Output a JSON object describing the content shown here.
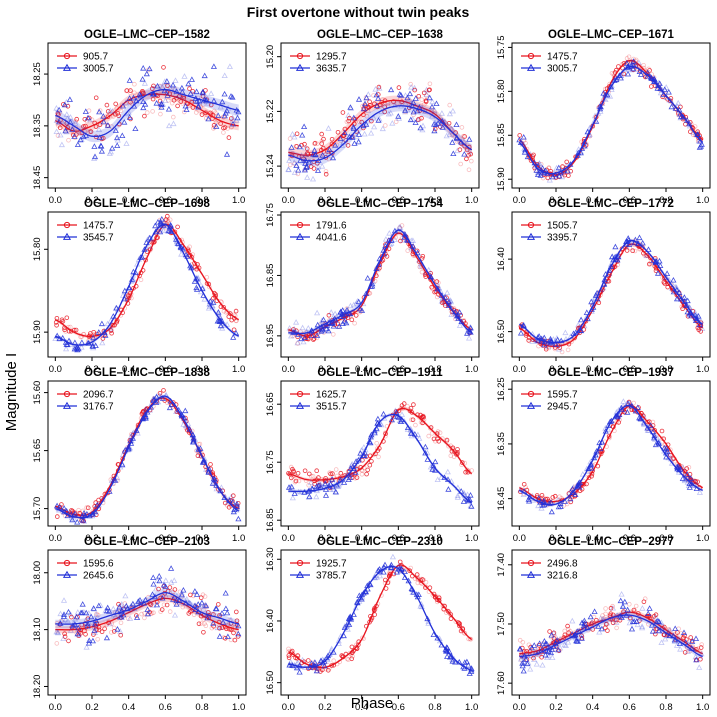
{
  "figure": {
    "title": "First overtone without twin peaks",
    "xlabel": "Phase",
    "ylabel": "Magnitude I",
    "colors": {
      "red": "#e8141e",
      "blue": "#2230d8"
    },
    "legend_placement": "top-left",
    "xticks": [
      "0.0",
      "0.2",
      "0.4",
      "0.6",
      "0.8",
      "1.0"
    ]
  },
  "chart_data": [
    {
      "type": "scatter",
      "title": "OGLE–LMC–CEP–1582",
      "xlim": [
        0,
        1
      ],
      "ylim": [
        18.47,
        18.19
      ],
      "yticks": [
        {
          "v": 18.25,
          "t": "18.25"
        },
        {
          "v": 18.35,
          "t": "18.35"
        },
        {
          "v": 18.45,
          "t": "18.45"
        }
      ],
      "series": [
        {
          "name": "905.7",
          "color": "red",
          "marker": "circle",
          "scatter": 0.035,
          "x": [
            0,
            0.1,
            0.2,
            0.3,
            0.4,
            0.5,
            0.6,
            0.7,
            0.8,
            0.9,
            1.0
          ],
          "y": [
            18.34,
            18.36,
            18.35,
            18.33,
            18.3,
            18.29,
            18.29,
            18.3,
            18.32,
            18.34,
            18.35
          ]
        },
        {
          "name": "3005.7",
          "color": "blue",
          "marker": "triangle",
          "scatter": 0.045,
          "x": [
            0,
            0.1,
            0.2,
            0.3,
            0.4,
            0.5,
            0.6,
            0.7,
            0.8,
            0.9,
            1.0
          ],
          "y": [
            18.33,
            18.35,
            18.37,
            18.36,
            18.32,
            18.29,
            18.28,
            18.29,
            18.3,
            18.31,
            18.32
          ]
        }
      ]
    },
    {
      "type": "scatter",
      "title": "OGLE–LMC–CEP–1638",
      "xlim": [
        0,
        1
      ],
      "ylim": [
        15.248,
        15.195
      ],
      "yticks": [
        {
          "v": 15.2,
          "t": "15.20"
        },
        {
          "v": 15.22,
          "t": "15.22"
        },
        {
          "v": 15.24,
          "t": "15.24"
        }
      ],
      "series": [
        {
          "name": "1295.7",
          "color": "red",
          "marker": "circle",
          "scatter": 0.007,
          "x": [
            0,
            0.1,
            0.2,
            0.3,
            0.4,
            0.5,
            0.6,
            0.7,
            0.8,
            0.9,
            1.0
          ],
          "y": [
            15.235,
            15.236,
            15.234,
            15.228,
            15.221,
            15.217,
            15.216,
            15.218,
            15.221,
            15.228,
            15.234
          ]
        },
        {
          "name": "3635.7",
          "color": "blue",
          "marker": "triangle",
          "scatter": 0.008,
          "x": [
            0,
            0.1,
            0.2,
            0.3,
            0.4,
            0.5,
            0.6,
            0.7,
            0.8,
            0.9,
            1.0
          ],
          "y": [
            15.236,
            15.238,
            15.237,
            15.232,
            15.225,
            15.22,
            15.218,
            15.219,
            15.222,
            15.228,
            15.234
          ]
        }
      ]
    },
    {
      "type": "scatter",
      "title": "OGLE–LMC–CEP–1671",
      "xlim": [
        0,
        1
      ],
      "ylim": [
        15.91,
        15.745
      ],
      "yticks": [
        {
          "v": 15.75,
          "t": "15.75"
        },
        {
          "v": 15.8,
          "t": "15.80"
        },
        {
          "v": 15.85,
          "t": "15.85"
        },
        {
          "v": 15.9,
          "t": "15.90"
        }
      ],
      "series": [
        {
          "name": "1475.7",
          "color": "red",
          "marker": "circle",
          "scatter": 0.007,
          "x": [
            0,
            0.1,
            0.2,
            0.3,
            0.4,
            0.5,
            0.6,
            0.7,
            0.8,
            0.9,
            1.0
          ],
          "y": [
            15.855,
            15.885,
            15.895,
            15.88,
            15.84,
            15.79,
            15.765,
            15.78,
            15.805,
            15.83,
            15.855
          ]
        },
        {
          "name": "3005.7",
          "color": "blue",
          "marker": "triangle",
          "scatter": 0.007,
          "x": [
            0,
            0.1,
            0.2,
            0.3,
            0.4,
            0.5,
            0.6,
            0.7,
            0.8,
            0.9,
            1.0
          ],
          "y": [
            15.858,
            15.888,
            15.893,
            15.878,
            15.838,
            15.795,
            15.772,
            15.782,
            15.805,
            15.83,
            15.858
          ]
        }
      ]
    },
    {
      "type": "scatter",
      "title": "OGLE–LMC–CEP–1698",
      "xlim": [
        0,
        1
      ],
      "ylim": [
        15.93,
        15.755
      ],
      "yticks": [
        {
          "v": 15.8,
          "t": "15.80"
        },
        {
          "v": 15.9,
          "t": "15.90"
        }
      ],
      "series": [
        {
          "name": "1475.7",
          "color": "red",
          "marker": "circle",
          "scatter": 0.008,
          "x": [
            0,
            0.1,
            0.2,
            0.3,
            0.4,
            0.5,
            0.6,
            0.7,
            0.8,
            0.9,
            1.0
          ],
          "y": [
            15.885,
            15.9,
            15.905,
            15.895,
            15.86,
            15.81,
            15.77,
            15.795,
            15.83,
            15.865,
            15.885
          ]
        },
        {
          "name": "3545.7",
          "color": "blue",
          "marker": "triangle",
          "scatter": 0.008,
          "x": [
            0,
            0.1,
            0.2,
            0.3,
            0.4,
            0.5,
            0.6,
            0.7,
            0.8,
            0.9,
            1.0
          ],
          "y": [
            15.905,
            15.915,
            15.912,
            15.89,
            15.845,
            15.795,
            15.77,
            15.805,
            15.85,
            15.885,
            15.905
          ]
        }
      ]
    },
    {
      "type": "scatter",
      "title": "OGLE–LMC–CEP–1754",
      "xlim": [
        0,
        1
      ],
      "ylim": [
        16.985,
        16.745
      ],
      "yticks": [
        {
          "v": 16.75,
          "t": "16.75"
        },
        {
          "v": 16.85,
          "t": "16.85"
        },
        {
          "v": 16.95,
          "t": "16.95"
        }
      ],
      "series": [
        {
          "name": "1791.6",
          "color": "red",
          "marker": "circle",
          "scatter": 0.013,
          "x": [
            0,
            0.1,
            0.2,
            0.3,
            0.4,
            0.5,
            0.6,
            0.7,
            0.8,
            0.9,
            1.0
          ],
          "y": [
            16.94,
            16.95,
            16.935,
            16.92,
            16.9,
            16.83,
            16.78,
            16.82,
            16.87,
            16.91,
            16.94
          ]
        },
        {
          "name": "4041.6",
          "color": "blue",
          "marker": "triangle",
          "scatter": 0.013,
          "x": [
            0,
            0.1,
            0.2,
            0.3,
            0.4,
            0.5,
            0.6,
            0.7,
            0.8,
            0.9,
            1.0
          ],
          "y": [
            16.945,
            16.945,
            16.93,
            16.915,
            16.895,
            16.825,
            16.775,
            16.815,
            16.865,
            16.91,
            16.945
          ]
        }
      ]
    },
    {
      "type": "scatter",
      "title": "OGLE–LMC–CEP–1772",
      "xlim": [
        0,
        1
      ],
      "ylim": [
        16.535,
        16.335
      ],
      "yticks": [
        {
          "v": 16.4,
          "t": "16.40"
        },
        {
          "v": 16.5,
          "t": "16.50"
        }
      ],
      "series": [
        {
          "name": "1505.7",
          "color": "red",
          "marker": "circle",
          "scatter": 0.008,
          "x": [
            0,
            0.1,
            0.2,
            0.3,
            0.4,
            0.5,
            0.6,
            0.7,
            0.8,
            0.9,
            1.0
          ],
          "y": [
            16.495,
            16.515,
            16.52,
            16.51,
            16.47,
            16.42,
            16.38,
            16.395,
            16.43,
            16.465,
            16.495
          ]
        },
        {
          "name": "3395.7",
          "color": "blue",
          "marker": "triangle",
          "scatter": 0.008,
          "x": [
            0,
            0.1,
            0.2,
            0.3,
            0.4,
            0.5,
            0.6,
            0.7,
            0.8,
            0.9,
            1.0
          ],
          "y": [
            16.49,
            16.51,
            16.515,
            16.505,
            16.465,
            16.41,
            16.375,
            16.39,
            16.425,
            16.46,
            16.49
          ]
        }
      ]
    },
    {
      "type": "scatter",
      "title": "OGLE–LMC–CEP–1838",
      "xlim": [
        0,
        1
      ],
      "ylim": [
        15.715,
        15.59
      ],
      "yticks": [
        {
          "v": 15.6,
          "t": "15.60"
        },
        {
          "v": 15.65,
          "t": "15.65"
        },
        {
          "v": 15.7,
          "t": "15.70"
        }
      ],
      "series": [
        {
          "name": "2096.7",
          "color": "red",
          "marker": "circle",
          "scatter": 0.005,
          "x": [
            0,
            0.1,
            0.2,
            0.3,
            0.4,
            0.5,
            0.6,
            0.7,
            0.8,
            0.9,
            1.0
          ],
          "y": [
            15.698,
            15.705,
            15.703,
            15.68,
            15.645,
            15.615,
            15.605,
            15.625,
            15.655,
            15.685,
            15.7
          ]
        },
        {
          "name": "3176.7",
          "color": "blue",
          "marker": "triangle",
          "scatter": 0.005,
          "x": [
            0,
            0.1,
            0.2,
            0.3,
            0.4,
            0.5,
            0.6,
            0.7,
            0.8,
            0.9,
            1.0
          ],
          "y": [
            15.7,
            15.707,
            15.705,
            15.682,
            15.647,
            15.617,
            15.603,
            15.623,
            15.655,
            15.685,
            15.702
          ]
        }
      ]
    },
    {
      "type": "scatter",
      "title": "OGLE–LMC–CEP–1911",
      "xlim": [
        0,
        1
      ],
      "ylim": [
        16.86,
        16.61
      ],
      "yticks": [
        {
          "v": 16.65,
          "t": "16.65"
        },
        {
          "v": 16.75,
          "t": "16.75"
        },
        {
          "v": 16.85,
          "t": "16.85"
        }
      ],
      "series": [
        {
          "name": "1625.7",
          "color": "red",
          "marker": "circle",
          "scatter": 0.012,
          "x": [
            0,
            0.1,
            0.2,
            0.3,
            0.4,
            0.5,
            0.6,
            0.7,
            0.8,
            0.9,
            1.0
          ],
          "y": [
            16.77,
            16.78,
            16.78,
            16.775,
            16.76,
            16.72,
            16.66,
            16.67,
            16.7,
            16.73,
            16.77
          ]
        },
        {
          "name": "3515.7",
          "color": "blue",
          "marker": "triangle",
          "scatter": 0.012,
          "x": [
            0,
            0.1,
            0.2,
            0.3,
            0.4,
            0.5,
            0.6,
            0.7,
            0.8,
            0.9,
            1.0
          ],
          "y": [
            16.8,
            16.8,
            16.795,
            16.78,
            16.74,
            16.68,
            16.67,
            16.71,
            16.76,
            16.79,
            16.82
          ]
        }
      ]
    },
    {
      "type": "scatter",
      "title": "OGLE–LMC–CEP–1937",
      "xlim": [
        0,
        1
      ],
      "ylim": [
        16.5,
        16.235
      ],
      "yticks": [
        {
          "v": 16.25,
          "t": "16.25"
        },
        {
          "v": 16.35,
          "t": "16.35"
        },
        {
          "v": 16.45,
          "t": "16.45"
        }
      ],
      "series": [
        {
          "name": "1595.7",
          "color": "red",
          "marker": "circle",
          "scatter": 0.01,
          "x": [
            0,
            0.1,
            0.2,
            0.3,
            0.4,
            0.5,
            0.6,
            0.7,
            0.8,
            0.9,
            1.0
          ],
          "y": [
            16.43,
            16.45,
            16.455,
            16.44,
            16.4,
            16.33,
            16.28,
            16.31,
            16.35,
            16.4,
            16.43
          ]
        },
        {
          "name": "2945.7",
          "color": "blue",
          "marker": "triangle",
          "scatter": 0.01,
          "x": [
            0,
            0.1,
            0.2,
            0.3,
            0.4,
            0.5,
            0.6,
            0.7,
            0.8,
            0.9,
            1.0
          ],
          "y": [
            16.435,
            16.455,
            16.46,
            16.435,
            16.38,
            16.31,
            16.28,
            16.32,
            16.37,
            16.41,
            16.435
          ]
        }
      ]
    },
    {
      "type": "scatter",
      "title": "OGLE–LMC–CEP–2103",
      "xlim": [
        0,
        1
      ],
      "ylim": [
        18.215,
        17.96
      ],
      "yticks": [
        {
          "v": 18.0,
          "t": "18.00"
        },
        {
          "v": 18.1,
          "t": "18.10"
        },
        {
          "v": 18.2,
          "t": "18.20"
        }
      ],
      "series": [
        {
          "name": "1595.6",
          "color": "red",
          "marker": "circle",
          "scatter": 0.025,
          "x": [
            0,
            0.1,
            0.2,
            0.3,
            0.4,
            0.5,
            0.6,
            0.7,
            0.8,
            0.9,
            1.0
          ],
          "y": [
            18.1,
            18.1,
            18.095,
            18.085,
            18.07,
            18.055,
            18.045,
            18.055,
            18.075,
            18.09,
            18.1
          ]
        },
        {
          "name": "2645.6",
          "color": "blue",
          "marker": "triangle",
          "scatter": 0.03,
          "x": [
            0,
            0.1,
            0.2,
            0.3,
            0.4,
            0.5,
            0.6,
            0.7,
            0.8,
            0.9,
            1.0
          ],
          "y": [
            18.09,
            18.09,
            18.085,
            18.075,
            18.065,
            18.05,
            18.035,
            18.05,
            18.07,
            18.08,
            18.09
          ]
        }
      ]
    },
    {
      "type": "scatter",
      "title": "OGLE–LMC–CEP–2310",
      "xlim": [
        0,
        1
      ],
      "ylim": [
        16.52,
        16.285
      ],
      "yticks": [
        {
          "v": 16.3,
          "t": "16.30"
        },
        {
          "v": 16.4,
          "t": "16.40"
        },
        {
          "v": 16.5,
          "t": "16.50"
        }
      ],
      "series": [
        {
          "name": "1925.7",
          "color": "red",
          "marker": "circle",
          "scatter": 0.008,
          "x": [
            0,
            0.1,
            0.2,
            0.3,
            0.4,
            0.5,
            0.6,
            0.7,
            0.8,
            0.9,
            1.0
          ],
          "y": [
            16.45,
            16.47,
            16.475,
            16.46,
            16.43,
            16.36,
            16.31,
            16.33,
            16.36,
            16.395,
            16.43
          ]
        },
        {
          "name": "3785.7",
          "color": "blue",
          "marker": "triangle",
          "scatter": 0.008,
          "x": [
            0,
            0.1,
            0.2,
            0.3,
            0.4,
            0.5,
            0.6,
            0.7,
            0.8,
            0.9,
            1.0
          ],
          "y": [
            16.47,
            16.475,
            16.465,
            16.42,
            16.36,
            16.32,
            16.315,
            16.36,
            16.42,
            16.46,
            16.48
          ]
        }
      ]
    },
    {
      "type": "scatter",
      "title": "OGLE–LMC–CEP–2977",
      "xlim": [
        0,
        1
      ],
      "ylim": [
        17.62,
        17.375
      ],
      "yticks": [
        {
          "v": 17.4,
          "t": "17.40"
        },
        {
          "v": 17.5,
          "t": "17.50"
        },
        {
          "v": 17.6,
          "t": "17.60"
        }
      ],
      "series": [
        {
          "name": "2496.8",
          "color": "red",
          "marker": "circle",
          "scatter": 0.018,
          "x": [
            0,
            0.1,
            0.2,
            0.3,
            0.4,
            0.5,
            0.6,
            0.7,
            0.8,
            0.9,
            1.0
          ],
          "y": [
            17.55,
            17.545,
            17.53,
            17.515,
            17.5,
            17.49,
            17.48,
            17.49,
            17.51,
            17.53,
            17.55
          ]
        },
        {
          "name": "3216.8",
          "color": "blue",
          "marker": "triangle",
          "scatter": 0.02,
          "x": [
            0,
            0.1,
            0.2,
            0.3,
            0.4,
            0.5,
            0.6,
            0.7,
            0.8,
            0.9,
            1.0
          ],
          "y": [
            17.555,
            17.55,
            17.535,
            17.52,
            17.505,
            17.49,
            17.485,
            17.495,
            17.515,
            17.535,
            17.555
          ]
        }
      ]
    }
  ]
}
